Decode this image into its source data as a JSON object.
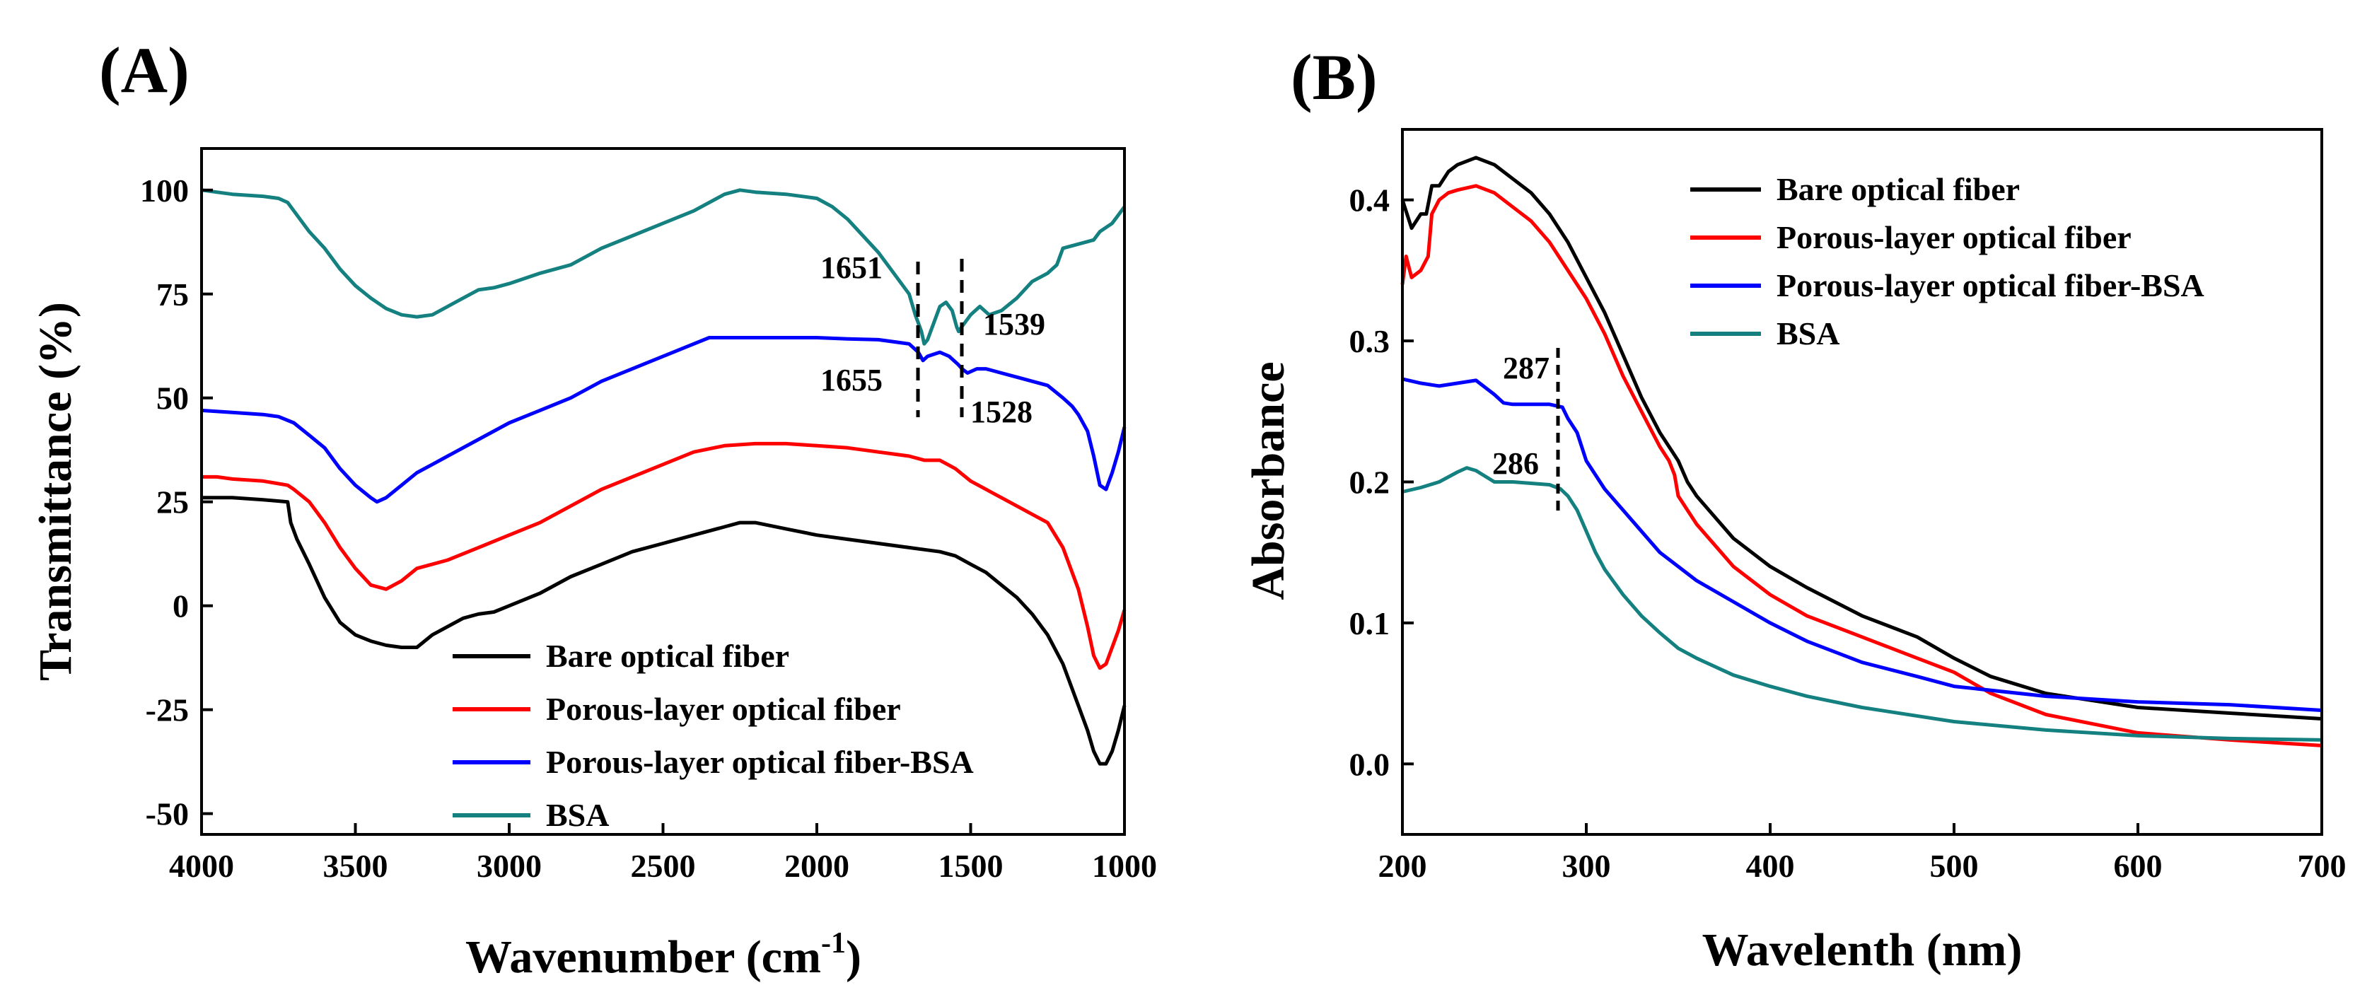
{
  "chart_data": [
    {
      "panel": "(A)",
      "type": "line",
      "title": "",
      "xlabel": "Wavenumber (cm",
      "xlabel_sup": "-1",
      "xlabel_end": ")",
      "ylabel": "Transmittance (%)",
      "xlim": [
        4000,
        1000
      ],
      "ylim": [
        -55,
        110
      ],
      "xticks": [
        "4000",
        "3500",
        "3000",
        "2500",
        "2000",
        "1500",
        "1000"
      ],
      "yticks": [
        "100",
        "75",
        "50",
        "25",
        "0",
        "-25",
        "-50"
      ],
      "legend_position": "bottom-right",
      "series": [
        {
          "name": "Bare optical fiber",
          "color": "#000000",
          "x": [
            4000,
            3900,
            3800,
            3720,
            3710,
            3690,
            3650,
            3600,
            3550,
            3500,
            3450,
            3400,
            3350,
            3300,
            3250,
            3200,
            3150,
            3100,
            3050,
            3000,
            2900,
            2800,
            2700,
            2600,
            2500,
            2400,
            2300,
            2250,
            2200,
            2100,
            2000,
            1900,
            1800,
            1700,
            1650,
            1600,
            1550,
            1500,
            1450,
            1400,
            1350,
            1300,
            1250,
            1200,
            1150,
            1120,
            1100,
            1080,
            1060,
            1040,
            1020,
            1000
          ],
          "y": [
            26,
            26,
            25.5,
            25,
            20,
            16,
            10,
            2,
            -4,
            -7,
            -8.5,
            -9.5,
            -10,
            -10,
            -7,
            -5,
            -3,
            -2,
            -1.5,
            0,
            3,
            7,
            10,
            13,
            15,
            17,
            19,
            20,
            20,
            18.5,
            17,
            16,
            15,
            14,
            13.5,
            13,
            12,
            10,
            8,
            5,
            2,
            -2,
            -7,
            -14,
            -24,
            -30,
            -35,
            -38,
            -38,
            -35,
            -30,
            -24
          ]
        },
        {
          "name": "Porous-layer optical fiber",
          "color": "#ff0000",
          "x": [
            4000,
            3950,
            3900,
            3800,
            3720,
            3700,
            3650,
            3600,
            3550,
            3500,
            3450,
            3400,
            3350,
            3300,
            3250,
            3200,
            3100,
            3000,
            2900,
            2800,
            2700,
            2600,
            2500,
            2400,
            2300,
            2200,
            2100,
            2000,
            1900,
            1800,
            1700,
            1650,
            1600,
            1550,
            1500,
            1450,
            1400,
            1350,
            1300,
            1250,
            1200,
            1150,
            1120,
            1100,
            1080,
            1060,
            1040,
            1020,
            1000
          ],
          "y": [
            31,
            31,
            30.5,
            30,
            29,
            28,
            25,
            20,
            14,
            9,
            5,
            4,
            6,
            9,
            10,
            11,
            14,
            17,
            20,
            24,
            28,
            31,
            34,
            37,
            38.5,
            39,
            39,
            38.5,
            38,
            37,
            36,
            35,
            35,
            33,
            30,
            28,
            26,
            24,
            22,
            20,
            14,
            4,
            -5,
            -12,
            -15,
            -14,
            -10,
            -6,
            -1
          ]
        },
        {
          "name": "Porous-layer optical fiber-BSA",
          "color": "#0000ff",
          "x": [
            4000,
            3900,
            3800,
            3750,
            3700,
            3650,
            3600,
            3550,
            3500,
            3450,
            3430,
            3400,
            3350,
            3300,
            3250,
            3200,
            3100,
            3000,
            2900,
            2800,
            2700,
            2600,
            2500,
            2400,
            2350,
            2300,
            2200,
            2100,
            2000,
            1900,
            1800,
            1700,
            1670,
            1655,
            1640,
            1600,
            1570,
            1540,
            1528,
            1510,
            1480,
            1450,
            1400,
            1350,
            1300,
            1250,
            1200,
            1170,
            1150,
            1120,
            1100,
            1080,
            1060,
            1040,
            1020,
            1000
          ],
          "y": [
            47,
            46.5,
            46,
            45.5,
            44,
            41,
            38,
            33,
            29,
            26,
            25,
            26,
            29,
            32,
            34,
            36,
            40,
            44,
            47,
            50,
            54,
            57,
            60,
            63,
            64.5,
            64.5,
            64.5,
            64.5,
            64.5,
            64.2,
            64,
            63,
            61,
            59,
            60,
            61,
            60,
            58,
            57,
            56,
            57,
            57,
            56,
            55,
            54,
            53,
            50,
            48,
            46,
            42,
            36,
            29,
            28,
            32,
            37,
            43
          ]
        },
        {
          "name": "BSA",
          "color": "#148080",
          "x": [
            4000,
            3900,
            3800,
            3750,
            3720,
            3700,
            3650,
            3600,
            3550,
            3500,
            3450,
            3400,
            3350,
            3300,
            3250,
            3200,
            3150,
            3100,
            3050,
            3000,
            2900,
            2800,
            2700,
            2600,
            2500,
            2400,
            2300,
            2250,
            2200,
            2100,
            2000,
            1950,
            1900,
            1850,
            1800,
            1750,
            1700,
            1680,
            1660,
            1651,
            1640,
            1620,
            1600,
            1580,
            1560,
            1545,
            1539,
            1530,
            1500,
            1470,
            1440,
            1400,
            1350,
            1300,
            1250,
            1220,
            1200,
            1150,
            1100,
            1080,
            1060,
            1040,
            1020,
            1000
          ],
          "y": [
            100,
            99,
            98.5,
            98,
            97,
            95,
            90,
            86,
            81,
            77,
            74,
            71.5,
            70,
            69.5,
            70,
            72,
            74,
            76,
            76.5,
            77.5,
            80,
            82,
            86,
            89,
            92,
            95,
            99,
            100,
            99.5,
            99,
            98,
            96,
            93,
            89,
            85,
            80,
            75,
            70,
            66,
            63,
            64,
            68,
            72,
            73,
            71,
            67,
            66,
            67,
            70,
            72,
            70,
            71,
            74,
            78,
            80,
            82,
            86,
            87,
            88,
            90,
            91,
            92,
            94,
            96
          ]
        }
      ],
      "annotations": [
        "1651",
        "1655",
        "1539",
        "1528"
      ]
    },
    {
      "panel": "(B)",
      "type": "line",
      "title": "",
      "xlabel": "Wavelenth (nm)",
      "ylabel": "Absorbance",
      "xlim": [
        200,
        700
      ],
      "ylim": [
        -0.05,
        0.45
      ],
      "xticks": [
        "200",
        "300",
        "400",
        "500",
        "600",
        "700"
      ],
      "yticks": [
        "0.4",
        "0.3",
        "0.2",
        "0.1",
        "0.0"
      ],
      "legend_position": "top-right",
      "series": [
        {
          "name": "Bare optical fiber",
          "color": "#000000",
          "x": [
            200,
            205,
            210,
            213,
            216,
            220,
            225,
            230,
            240,
            250,
            260,
            270,
            280,
            290,
            300,
            310,
            320,
            330,
            340,
            345,
            350,
            355,
            360,
            370,
            380,
            400,
            420,
            450,
            480,
            500,
            520,
            550,
            600,
            650,
            700
          ],
          "y": [
            0.4,
            0.38,
            0.39,
            0.39,
            0.41,
            0.41,
            0.42,
            0.425,
            0.43,
            0.425,
            0.415,
            0.405,
            0.39,
            0.37,
            0.345,
            0.32,
            0.29,
            0.26,
            0.235,
            0.225,
            0.215,
            0.2,
            0.19,
            0.175,
            0.16,
            0.14,
            0.125,
            0.105,
            0.09,
            0.075,
            0.062,
            0.05,
            0.04,
            0.036,
            0.032
          ]
        },
        {
          "name": "Porous-layer optical fiber",
          "color": "#ff0000",
          "x": [
            200,
            202,
            205,
            210,
            214,
            216,
            220,
            225,
            230,
            240,
            250,
            260,
            270,
            280,
            290,
            300,
            310,
            320,
            330,
            340,
            345,
            348,
            350,
            355,
            360,
            370,
            380,
            400,
            420,
            450,
            480,
            500,
            520,
            550,
            600,
            650,
            700
          ],
          "y": [
            0.34,
            0.36,
            0.345,
            0.35,
            0.36,
            0.39,
            0.4,
            0.405,
            0.407,
            0.41,
            0.405,
            0.395,
            0.385,
            0.37,
            0.35,
            0.33,
            0.305,
            0.275,
            0.25,
            0.225,
            0.215,
            0.205,
            0.19,
            0.18,
            0.17,
            0.155,
            0.14,
            0.12,
            0.105,
            0.09,
            0.075,
            0.065,
            0.05,
            0.035,
            0.022,
            0.017,
            0.013
          ]
        },
        {
          "name": "Porous-layer optical fiber-BSA",
          "color": "#0000ff",
          "x": [
            200,
            210,
            220,
            230,
            240,
            250,
            255,
            260,
            270,
            280,
            287,
            290,
            295,
            300,
            310,
            320,
            330,
            340,
            350,
            360,
            380,
            400,
            420,
            450,
            480,
            500,
            550,
            600,
            650,
            700
          ],
          "y": [
            0.273,
            0.27,
            0.268,
            0.27,
            0.272,
            0.262,
            0.256,
            0.255,
            0.255,
            0.255,
            0.253,
            0.245,
            0.235,
            0.215,
            0.195,
            0.18,
            0.165,
            0.15,
            0.14,
            0.13,
            0.115,
            0.1,
            0.087,
            0.072,
            0.062,
            0.055,
            0.048,
            0.044,
            0.042,
            0.038
          ]
        },
        {
          "name": "BSA",
          "color": "#148080",
          "x": [
            200,
            210,
            220,
            230,
            235,
            240,
            250,
            260,
            270,
            280,
            286,
            290,
            295,
            300,
            305,
            310,
            320,
            330,
            340,
            350,
            360,
            380,
            400,
            420,
            450,
            500,
            550,
            600,
            650,
            700
          ],
          "y": [
            0.193,
            0.196,
            0.2,
            0.207,
            0.21,
            0.208,
            0.2,
            0.2,
            0.199,
            0.198,
            0.195,
            0.19,
            0.18,
            0.165,
            0.15,
            0.138,
            0.12,
            0.105,
            0.093,
            0.082,
            0.075,
            0.063,
            0.055,
            0.048,
            0.04,
            0.03,
            0.024,
            0.02,
            0.018,
            0.017
          ]
        }
      ],
      "annotations": [
        "287",
        "286"
      ]
    }
  ]
}
